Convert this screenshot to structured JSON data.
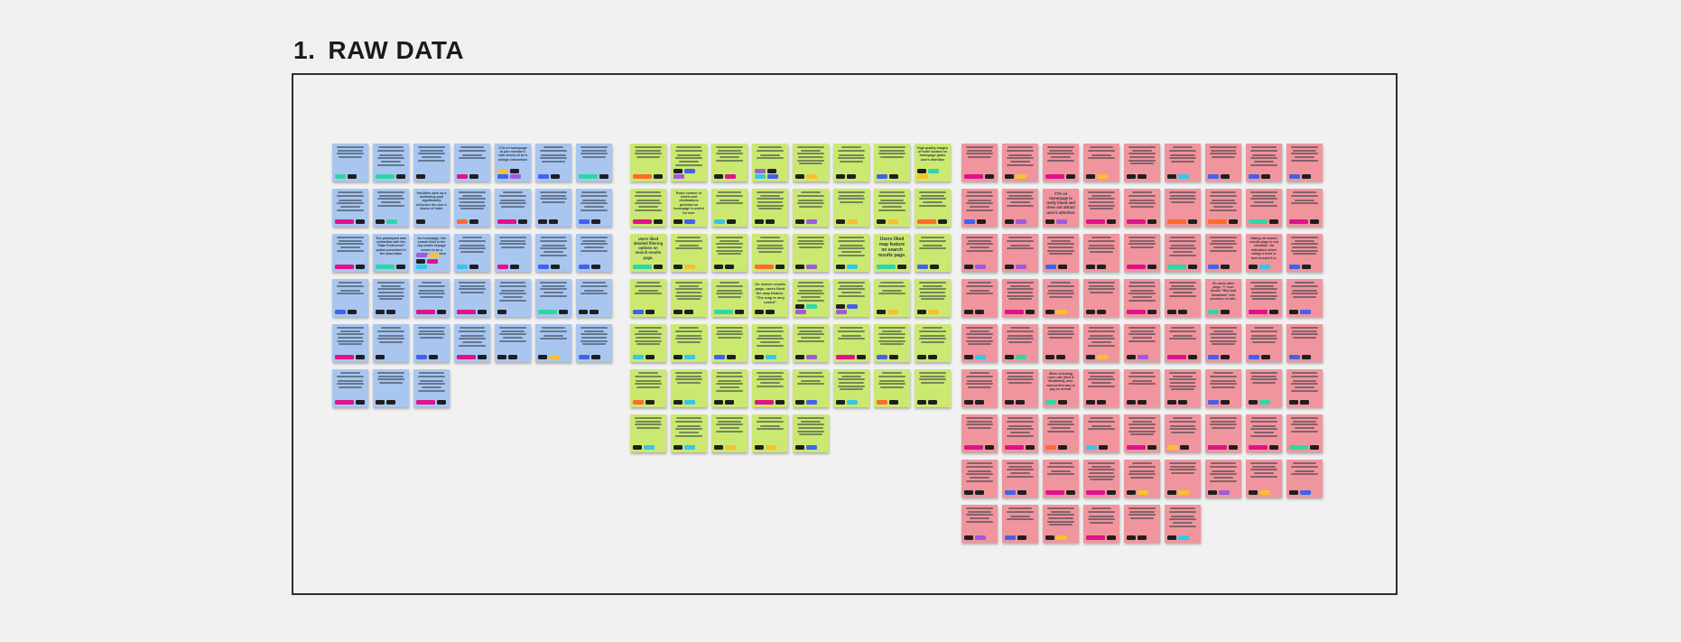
{
  "frame": {
    "number": "1.",
    "title": "RAW DATA",
    "border_color": "#2e2e2e",
    "fill_color": "#f1f1f1"
  },
  "page_background": "#f0f0f0",
  "tag_palette": {
    "black": "#1f1f1f",
    "magenta": "#e0128b",
    "orange": "#ff6b2b",
    "teal": "#2fd7a7",
    "cyan": "#37c6e8",
    "blue": "#4262ec",
    "purple": "#9f5bdd",
    "yellow": "#f6c12e"
  },
  "clusters": [
    {
      "id": "blue",
      "note_color": "#a8c6ef",
      "rows": [
        [
          "teal black",
          "teal-w black",
          "black",
          "magenta black",
          "yellow black blue purple",
          "blue black",
          "teal-w black"
        ],
        [
          "magenta-w black",
          "black teal",
          "black",
          "orange black",
          "magenta-w black",
          "black black",
          "blue black"
        ],
        [
          "magenta-w black",
          "teal-w black",
          "purple yellow black magenta cyan",
          "cyan black",
          "magenta black",
          "blue black",
          "blue black"
        ],
        [
          "blue black",
          "black black",
          "magenta-w black",
          "magenta-w black",
          "black",
          "teal-w black",
          "black black"
        ],
        [
          "magenta-w black",
          "black",
          "blue black",
          "magenta-w black",
          "black black",
          "black yellow",
          "blue black"
        ],
        [
          "magenta-w black",
          "black black",
          "magenta-w black"
        ]
      ],
      "texts": [
        {
          "row": 0,
          "col": 4,
          "text": "CTA on homepage to join member's club seems to be a design convention"
        },
        {
          "row": 1,
          "col": 2,
          "text": "Facilities such as a swimming pool significantly influence the user's choice of hotel."
        },
        {
          "row": 2,
          "col": 1,
          "text": "The participant was unfamiliar with the \"Rate Preference\" option presented in the searchbox"
        },
        {
          "row": 2,
          "col": 2,
          "text": "On homepage, the search field in the top centre of page seems to be a design convention"
        }
      ]
    },
    {
      "id": "green",
      "note_color": "#cbe871",
      "rows": [
        [
          "orange-w black",
          "black blue purple",
          "black magenta",
          "purple black cyan blue",
          "black yellow",
          "black black",
          "blue black",
          "black teal yellow"
        ],
        [
          "magenta-w black",
          "black blue",
          "cyan black",
          "black black",
          "black purple",
          "black yellow",
          "black yellow",
          "orange-w black"
        ],
        [
          "teal-w black",
          "black yellow",
          "black black",
          "orange-w black",
          "black purple",
          "black cyan",
          "teal-w black",
          "blue black"
        ],
        [
          "blue black",
          "black black",
          "teal-w black",
          "black black",
          "black teal purple",
          "black blue purple",
          "black yellow",
          "black yellow"
        ],
        [
          "cyan black",
          "black cyan",
          "blue black",
          "black cyan",
          "black purple",
          "magenta-w black",
          "blue black",
          "black black"
        ],
        [
          "orange black",
          "black cyan",
          "black black",
          "magenta-w black",
          "black blue",
          "black cyan",
          "orange black",
          "black black"
        ],
        [
          "black cyan",
          "black cyan",
          "black yellow",
          "black yellow",
          "black blue"
        ]
      ],
      "texts": [
        {
          "row": 0,
          "col": 7,
          "text": "High quality images of hotel located on homepage grabs user's attention"
        },
        {
          "row": 1,
          "col": 1,
          "text": "Exact number of hotels and destinations provided on homepage is useful for user"
        },
        {
          "row": 2,
          "col": 0,
          "text": "Users liked detailed filtering options on search results page.",
          "size": 4.2
        },
        {
          "row": 2,
          "col": 6,
          "text": "Users liked map feature on search results page.",
          "size": 5
        },
        {
          "row": 3,
          "col": 3,
          "text": "On search results page, users liked the map feature. \"The map is very useful\"",
          "size": 4
        }
      ]
    },
    {
      "id": "pink",
      "note_color": "#f0959d",
      "rows": [
        [
          "magenta-w black",
          "black yellow",
          "magenta-w black",
          "black yellow",
          "black black",
          "black cyan",
          "blue black",
          "blue black",
          "blue black"
        ],
        [
          "blue black",
          "black purple",
          "black purple",
          "magenta-w black",
          "magenta-w black",
          "orange-w black",
          "orange-w black",
          "teal-w black",
          "magenta-w black"
        ],
        [
          "black purple",
          "black purple",
          "blue black",
          "black black",
          "magenta-w black",
          "teal-w black",
          "blue black",
          "black cyan",
          "blue black"
        ],
        [
          "black black",
          "magenta-w black",
          "black yellow",
          "black black",
          "magenta-w black",
          "black black",
          "teal black",
          "magenta-w black",
          "black blue"
        ],
        [
          "black cyan",
          "black teal",
          "black black",
          "black yellow",
          "black purple",
          "magenta-w black",
          "blue black",
          "blue black",
          "blue black"
        ],
        [
          "black black",
          "black black",
          "teal black",
          "black black",
          "black black",
          "black black",
          "blue black",
          "black teal",
          "black black"
        ],
        [
          "magenta-w black",
          "magenta-w black",
          "orange black",
          "cyan black",
          "magenta-w black",
          "yellow black",
          "magenta-w black",
          "magenta-w black",
          "teal-w black"
        ],
        [
          "black black",
          "blue black",
          "magenta-w black",
          "magenta-w black",
          "black yellow",
          "black yellow",
          "black purple",
          "black yellow",
          "black blue"
        ],
        [
          "black purple",
          "blue black",
          "black yellow",
          "magenta-w black",
          "black black",
          "black cyan"
        ]
      ],
      "texts": [
        {
          "row": 1,
          "col": 2,
          "text": "CTA on homepage is really bland and does not attract user's attention",
          "size": 4.2
        },
        {
          "row": 2,
          "col": 7,
          "text": "Rating on search results page is not clickable. No indication where rating is from or how trusted it is."
        },
        {
          "row": 3,
          "col": 6,
          "text": "On room rates page, \"i\" icon beside \"Bed and Breakfast\" text provides no info."
        },
        {
          "row": 5,
          "col": 2,
          "text": "When selecting room rate (Bed & Breakfast), user cannot find way to pay on arrival."
        }
      ]
    }
  ]
}
